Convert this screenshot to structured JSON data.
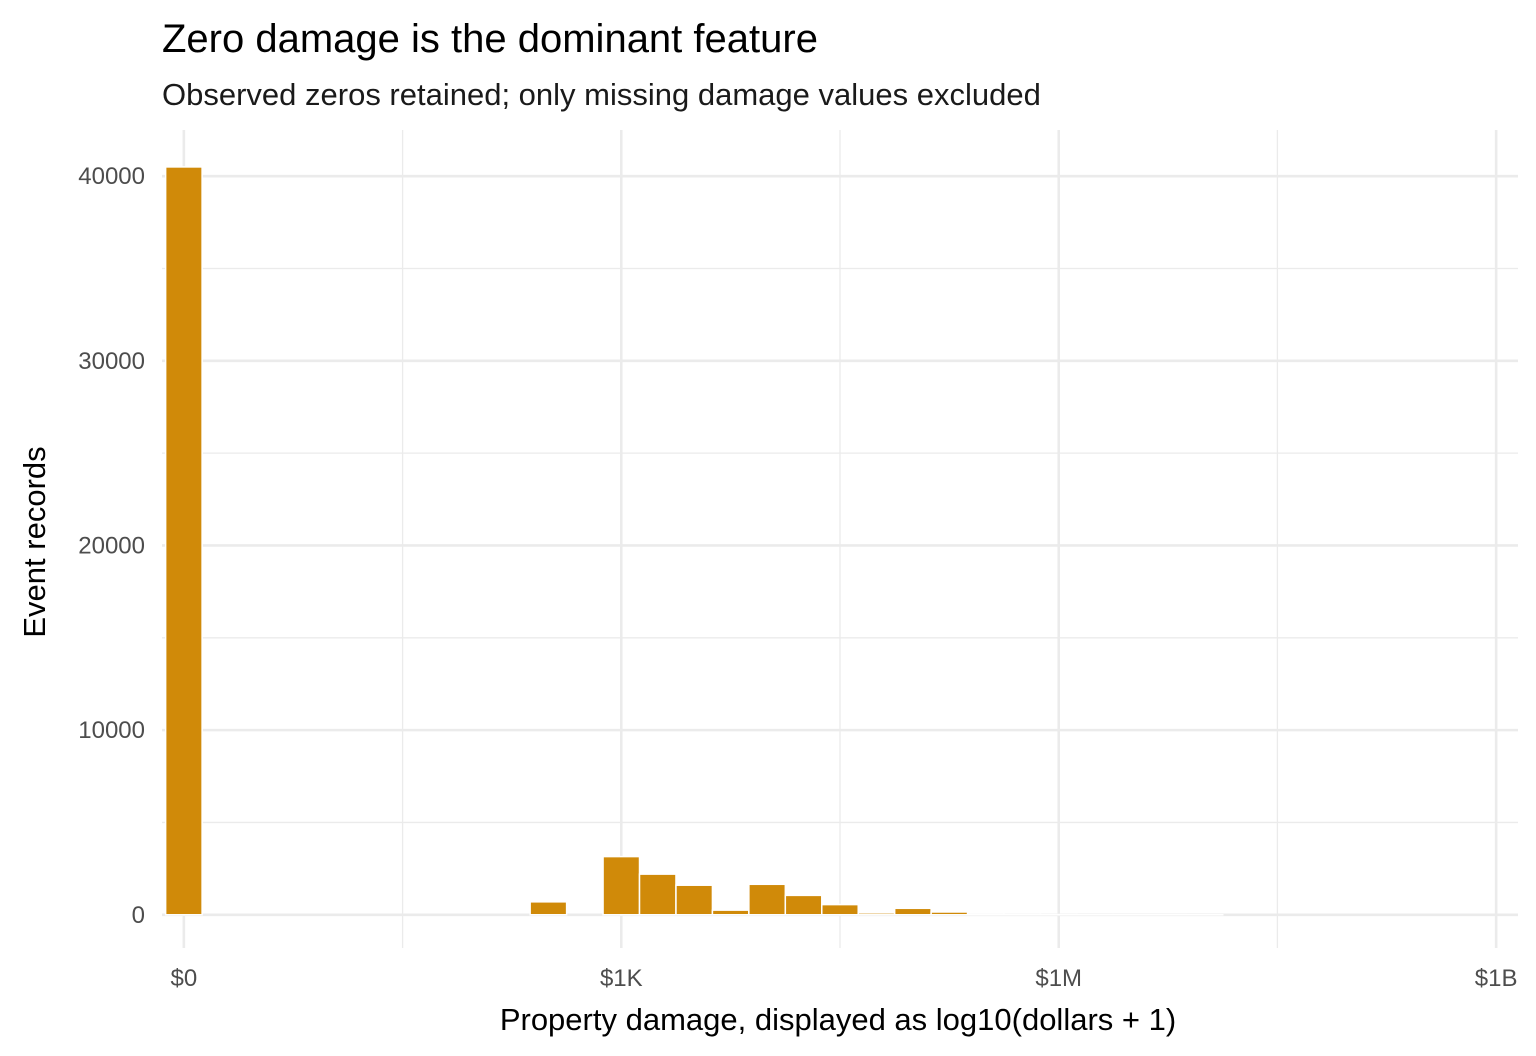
{
  "chart_data": {
    "type": "bar",
    "title": "Zero damage is the dominant feature",
    "subtitle": "Observed zeros retained; only missing damage values excluded",
    "xlabel": "Property damage, displayed as log10(dollars + 1)",
    "ylabel": "Event records",
    "x_scale": "log10(dollars + 1)",
    "xlim": [
      -0.15,
      9.15
    ],
    "ylim": [
      -1800,
      42500
    ],
    "x_ticks": [
      {
        "value": 0,
        "label": "$0"
      },
      {
        "value": 3,
        "label": "$1K"
      },
      {
        "value": 6,
        "label": "$1M"
      },
      {
        "value": 9,
        "label": "$1B"
      }
    ],
    "x_minor_ticks": [
      1.5,
      4.5,
      7.5
    ],
    "y_ticks": [
      {
        "value": 0,
        "label": "0"
      },
      {
        "value": 10000,
        "label": "10000"
      },
      {
        "value": 20000,
        "label": "20000"
      },
      {
        "value": 30000,
        "label": "30000"
      },
      {
        "value": 40000,
        "label": "40000"
      }
    ],
    "y_minor_ticks": [
      5000,
      15000,
      25000,
      35000
    ],
    "grid": true,
    "bar_color": "#D08A09",
    "bin_width": 0.25,
    "bins": [
      {
        "x": 0.0,
        "count": 40500
      },
      {
        "x": 2.5,
        "count": 700
      },
      {
        "x": 3.0,
        "count": 3150
      },
      {
        "x": 3.25,
        "count": 2200
      },
      {
        "x": 3.5,
        "count": 1600
      },
      {
        "x": 3.75,
        "count": 250
      },
      {
        "x": 4.0,
        "count": 1650
      },
      {
        "x": 4.25,
        "count": 1050
      },
      {
        "x": 4.5,
        "count": 550
      },
      {
        "x": 4.75,
        "count": 100
      },
      {
        "x": 5.0,
        "count": 350
      },
      {
        "x": 5.25,
        "count": 150
      },
      {
        "x": 5.5,
        "count": 20
      },
      {
        "x": 5.75,
        "count": 15
      },
      {
        "x": 6.0,
        "count": 10
      },
      {
        "x": 6.25,
        "count": 5
      },
      {
        "x": 6.5,
        "count": 3
      },
      {
        "x": 6.75,
        "count": 2
      },
      {
        "x": 7.0,
        "count": 1
      }
    ]
  }
}
